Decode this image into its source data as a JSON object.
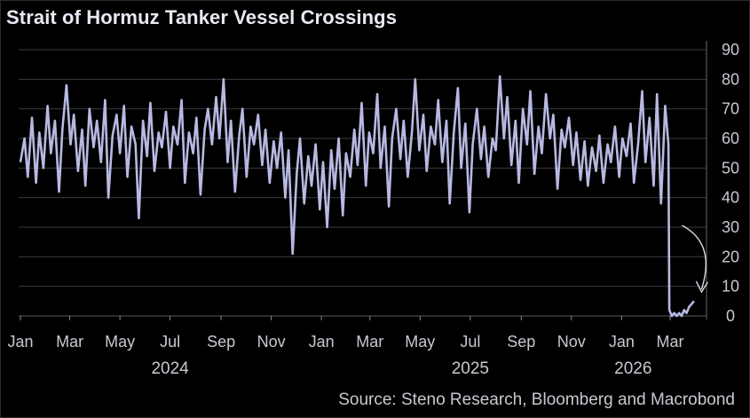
{
  "title": "Strait of Hormuz Tanker Vessel Crossings",
  "source": "Source: Steno Research, Bloomberg and Macrobond",
  "colors": {
    "background": "#000000",
    "series": "#b7b9e2",
    "grid": "#3a3a44",
    "text": "#c8c8d2"
  },
  "chart_data": {
    "type": "line",
    "title": "Strait of Hormuz Tanker Vessel Crossings",
    "xlabel": "",
    "ylabel": "",
    "x_range": [
      "2024-01-01",
      "2026-03-31"
    ],
    "ylim": [
      0,
      90
    ],
    "y_ticks": [
      0,
      10,
      20,
      30,
      40,
      50,
      60,
      70,
      80,
      90
    ],
    "y_axis_position": "right",
    "grid": true,
    "x_tick_labels": [
      "Jan",
      "Mar",
      "May",
      "Jul",
      "Sep",
      "Nov",
      "Jan",
      "Mar",
      "May",
      "Jul",
      "Sep",
      "Nov",
      "Jan",
      "Mar"
    ],
    "x_tick_dates": [
      "2024-01-01",
      "2024-03-01",
      "2024-05-01",
      "2024-07-01",
      "2024-09-01",
      "2024-11-01",
      "2025-01-01",
      "2025-03-01",
      "2025-05-01",
      "2025-07-01",
      "2025-09-01",
      "2025-11-01",
      "2026-01-01",
      "2026-03-01"
    ],
    "year_labels": [
      "2024",
      "2025",
      "2026"
    ],
    "year_label_dates": [
      "2024-07-01",
      "2025-07-01",
      "2026-01-15"
    ],
    "annotation": "curved arrow pointing down toward the March 2026 drop",
    "series": [
      {
        "points": [
          [
            "2024-01-01",
            52
          ],
          [
            "2024-01-06",
            60
          ],
          [
            "2024-01-10",
            47
          ],
          [
            "2024-01-15",
            67
          ],
          [
            "2024-01-20",
            45
          ],
          [
            "2024-01-24",
            62
          ],
          [
            "2024-01-29",
            50
          ],
          [
            "2024-02-03",
            71
          ],
          [
            "2024-02-07",
            55
          ],
          [
            "2024-02-12",
            66
          ],
          [
            "2024-02-17",
            42
          ],
          [
            "2024-02-21",
            63
          ],
          [
            "2024-02-26",
            78
          ],
          [
            "2024-03-02",
            58
          ],
          [
            "2024-03-06",
            68
          ],
          [
            "2024-03-11",
            49
          ],
          [
            "2024-03-16",
            63
          ],
          [
            "2024-03-20",
            44
          ],
          [
            "2024-03-25",
            70
          ],
          [
            "2024-03-30",
            57
          ],
          [
            "2024-04-03",
            66
          ],
          [
            "2024-04-08",
            52
          ],
          [
            "2024-04-13",
            73
          ],
          [
            "2024-04-17",
            40
          ],
          [
            "2024-04-22",
            61
          ],
          [
            "2024-04-27",
            68
          ],
          [
            "2024-05-01",
            55
          ],
          [
            "2024-05-06",
            71
          ],
          [
            "2024-05-10",
            47
          ],
          [
            "2024-05-15",
            64
          ],
          [
            "2024-05-20",
            58
          ],
          [
            "2024-05-24",
            33
          ],
          [
            "2024-05-29",
            66
          ],
          [
            "2024-06-03",
            54
          ],
          [
            "2024-06-07",
            72
          ],
          [
            "2024-06-12",
            49
          ],
          [
            "2024-06-17",
            62
          ],
          [
            "2024-06-21",
            57
          ],
          [
            "2024-06-26",
            69
          ],
          [
            "2024-07-01",
            50
          ],
          [
            "2024-07-05",
            64
          ],
          [
            "2024-07-10",
            58
          ],
          [
            "2024-07-15",
            73
          ],
          [
            "2024-07-19",
            45
          ],
          [
            "2024-07-24",
            62
          ],
          [
            "2024-07-29",
            55
          ],
          [
            "2024-08-02",
            67
          ],
          [
            "2024-08-07",
            41
          ],
          [
            "2024-08-12",
            63
          ],
          [
            "2024-08-16",
            70
          ],
          [
            "2024-08-21",
            58
          ],
          [
            "2024-08-26",
            74
          ],
          [
            "2024-08-30",
            60
          ],
          [
            "2024-09-04",
            80
          ],
          [
            "2024-09-09",
            52
          ],
          [
            "2024-09-13",
            66
          ],
          [
            "2024-09-18",
            42
          ],
          [
            "2024-09-23",
            61
          ],
          [
            "2024-09-27",
            70
          ],
          [
            "2024-10-02",
            47
          ],
          [
            "2024-10-07",
            64
          ],
          [
            "2024-10-11",
            58
          ],
          [
            "2024-10-16",
            68
          ],
          [
            "2024-10-21",
            51
          ],
          [
            "2024-10-25",
            63
          ],
          [
            "2024-10-30",
            45
          ],
          [
            "2024-11-04",
            59
          ],
          [
            "2024-11-08",
            50
          ],
          [
            "2024-11-13",
            62
          ],
          [
            "2024-11-18",
            40
          ],
          [
            "2024-11-22",
            56
          ],
          [
            "2024-11-27",
            21
          ],
          [
            "2024-12-02",
            48
          ],
          [
            "2024-12-06",
            60
          ],
          [
            "2024-12-11",
            38
          ],
          [
            "2024-12-16",
            54
          ],
          [
            "2024-12-20",
            44
          ],
          [
            "2024-12-25",
            58
          ],
          [
            "2024-12-30",
            36
          ],
          [
            "2025-01-03",
            52
          ],
          [
            "2025-01-08",
            30
          ],
          [
            "2025-01-13",
            56
          ],
          [
            "2025-01-17",
            43
          ],
          [
            "2025-01-22",
            60
          ],
          [
            "2025-01-27",
            34
          ],
          [
            "2025-01-31",
            55
          ],
          [
            "2025-02-05",
            47
          ],
          [
            "2025-02-10",
            63
          ],
          [
            "2025-02-14",
            51
          ],
          [
            "2025-02-19",
            72
          ],
          [
            "2025-02-24",
            44
          ],
          [
            "2025-02-28",
            62
          ],
          [
            "2025-03-05",
            55
          ],
          [
            "2025-03-10",
            75
          ],
          [
            "2025-03-14",
            50
          ],
          [
            "2025-03-19",
            64
          ],
          [
            "2025-03-24",
            37
          ],
          [
            "2025-03-28",
            60
          ],
          [
            "2025-04-02",
            70
          ],
          [
            "2025-04-07",
            53
          ],
          [
            "2025-04-11",
            66
          ],
          [
            "2025-04-16",
            47
          ],
          [
            "2025-04-21",
            62
          ],
          [
            "2025-04-25",
            80
          ],
          [
            "2025-04-30",
            56
          ],
          [
            "2025-05-05",
            68
          ],
          [
            "2025-05-09",
            49
          ],
          [
            "2025-05-14",
            64
          ],
          [
            "2025-05-19",
            58
          ],
          [
            "2025-05-23",
            73
          ],
          [
            "2025-05-28",
            52
          ],
          [
            "2025-06-02",
            66
          ],
          [
            "2025-06-06",
            38
          ],
          [
            "2025-06-11",
            62
          ],
          [
            "2025-06-16",
            77
          ],
          [
            "2025-06-20",
            50
          ],
          [
            "2025-06-25",
            65
          ],
          [
            "2025-06-30",
            35
          ],
          [
            "2025-07-04",
            58
          ],
          [
            "2025-07-09",
            70
          ],
          [
            "2025-07-14",
            53
          ],
          [
            "2025-07-18",
            64
          ],
          [
            "2025-07-23",
            47
          ],
          [
            "2025-07-28",
            60
          ],
          [
            "2025-08-01",
            56
          ],
          [
            "2025-08-06",
            81
          ],
          [
            "2025-08-11",
            60
          ],
          [
            "2025-08-15",
            74
          ],
          [
            "2025-08-20",
            51
          ],
          [
            "2025-08-25",
            66
          ],
          [
            "2025-08-29",
            45
          ],
          [
            "2025-09-03",
            70
          ],
          [
            "2025-09-08",
            58
          ],
          [
            "2025-09-12",
            76
          ],
          [
            "2025-09-17",
            48
          ],
          [
            "2025-09-22",
            64
          ],
          [
            "2025-09-26",
            55
          ],
          [
            "2025-10-01",
            75
          ],
          [
            "2025-10-06",
            60
          ],
          [
            "2025-10-10",
            68
          ],
          [
            "2025-10-15",
            43
          ],
          [
            "2025-10-20",
            63
          ],
          [
            "2025-10-24",
            57
          ],
          [
            "2025-10-29",
            67
          ],
          [
            "2025-11-03",
            51
          ],
          [
            "2025-11-07",
            62
          ],
          [
            "2025-11-12",
            46
          ],
          [
            "2025-11-17",
            59
          ],
          [
            "2025-11-21",
            44
          ],
          [
            "2025-11-26",
            57
          ],
          [
            "2025-12-01",
            49
          ],
          [
            "2025-12-05",
            61
          ],
          [
            "2025-12-10",
            45
          ],
          [
            "2025-12-15",
            58
          ],
          [
            "2025-12-19",
            52
          ],
          [
            "2025-12-24",
            64
          ],
          [
            "2025-12-29",
            47
          ],
          [
            "2026-01-02",
            60
          ],
          [
            "2026-01-07",
            54
          ],
          [
            "2026-01-12",
            65
          ],
          [
            "2026-01-16",
            45
          ],
          [
            "2026-01-21",
            58
          ],
          [
            "2026-01-26",
            76
          ],
          [
            "2026-01-30",
            52
          ],
          [
            "2026-02-04",
            67
          ],
          [
            "2026-02-09",
            44
          ],
          [
            "2026-02-13",
            75
          ],
          [
            "2026-02-18",
            38
          ],
          [
            "2026-02-23",
            71
          ],
          [
            "2026-02-27",
            58
          ],
          [
            "2026-02-28",
            2
          ],
          [
            "2026-03-03",
            0
          ],
          [
            "2026-03-06",
            1
          ],
          [
            "2026-03-09",
            0
          ],
          [
            "2026-03-12",
            1
          ],
          [
            "2026-03-15",
            0
          ],
          [
            "2026-03-18",
            2
          ],
          [
            "2026-03-21",
            1
          ],
          [
            "2026-03-24",
            3
          ],
          [
            "2026-03-27",
            4
          ],
          [
            "2026-03-30",
            5
          ]
        ]
      }
    ]
  }
}
